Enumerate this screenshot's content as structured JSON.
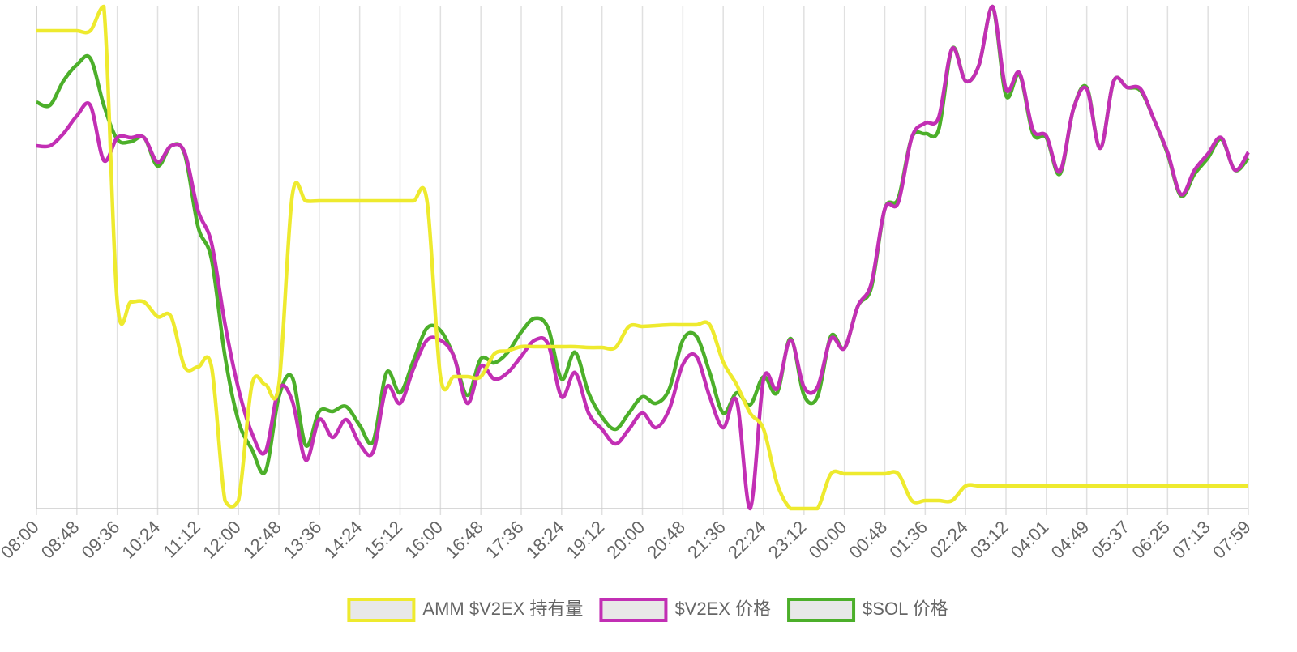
{
  "chart_data": {
    "type": "line",
    "categories": [
      "08:00",
      null,
      null,
      "08:48",
      null,
      null,
      "09:36",
      null,
      null,
      "10:24",
      null,
      null,
      "11:12",
      null,
      null,
      "12:00",
      null,
      null,
      "12:48",
      null,
      null,
      "13:36",
      null,
      null,
      "14:24",
      null,
      null,
      "15:12",
      null,
      null,
      "16:00",
      null,
      null,
      "16:48",
      null,
      null,
      "17:36",
      null,
      null,
      "18:24",
      null,
      null,
      "19:12",
      null,
      null,
      "20:00",
      null,
      null,
      "20:48",
      null,
      null,
      "21:36",
      null,
      null,
      "22:24",
      null,
      null,
      "23:12",
      null,
      null,
      "00:00",
      null,
      null,
      "00:48",
      null,
      null,
      "01:36",
      null,
      null,
      "02:24",
      null,
      null,
      "03:12",
      null,
      null,
      "04:01",
      null,
      null,
      "04:49",
      null,
      null,
      "05:37",
      null,
      null,
      "06:25",
      null,
      null,
      "07:13",
      null,
      null,
      "07:59"
    ],
    "series": [
      {
        "name": "AMM $V2EX 持有量",
        "color": "#eeea2e",
        "values": [
          590,
          590,
          590,
          590,
          590,
          620,
          255,
          255,
          255,
          237,
          237,
          175,
          175,
          175,
          10,
          10,
          153,
          153,
          153,
          387,
          380,
          380,
          380,
          380,
          380,
          380,
          380,
          380,
          380,
          380,
          163,
          163,
          163,
          163,
          191,
          195,
          200,
          200,
          200,
          200,
          200,
          199,
          199,
          199,
          225,
          225,
          226,
          227,
          227,
          227,
          227,
          181,
          153,
          118,
          98,
          31,
          0,
          0,
          0,
          43,
          43,
          43,
          43,
          43,
          43,
          10,
          10,
          10,
          10,
          28,
          28,
          28,
          28,
          28,
          28,
          28,
          28,
          28,
          28,
          28,
          28,
          28,
          28,
          28,
          28,
          28,
          28,
          28,
          28,
          28,
          28
        ]
      },
      {
        "name": "$V2EX 价格",
        "color": "#c22fb4",
        "values": [
          448,
          448,
          463,
          485,
          498,
          430,
          458,
          458,
          458,
          428,
          448,
          440,
          368,
          328,
          228,
          148,
          93,
          70,
          148,
          133,
          60,
          110,
          88,
          110,
          80,
          70,
          150,
          130,
          173,
          208,
          208,
          188,
          130,
          176,
          160,
          168,
          188,
          208,
          203,
          138,
          168,
          118,
          98,
          80,
          98,
          118,
          100,
          123,
          178,
          188,
          138,
          100,
          133,
          0,
          160,
          148,
          208,
          150,
          150,
          210,
          198,
          250,
          278,
          370,
          378,
          458,
          476,
          483,
          568,
          528,
          548,
          620,
          518,
          538,
          468,
          460,
          416,
          493,
          518,
          445,
          528,
          520,
          518,
          480,
          440,
          388,
          418,
          438,
          458,
          418,
          440
        ]
      },
      {
        "name": "$SOL 价格",
        "color": "#4caf2a",
        "values": [
          502,
          498,
          528,
          548,
          556,
          498,
          456,
          453,
          458,
          423,
          448,
          438,
          348,
          308,
          188,
          108,
          73,
          46,
          138,
          162,
          78,
          120,
          120,
          126,
          103,
          83,
          168,
          143,
          183,
          223,
          220,
          188,
          140,
          185,
          180,
          193,
          218,
          235,
          223,
          160,
          193,
          143,
          113,
          98,
          118,
          138,
          130,
          148,
          208,
          213,
          168,
          118,
          143,
          128,
          163,
          143,
          210,
          140,
          138,
          213,
          198,
          250,
          273,
          370,
          383,
          458,
          463,
          468,
          568,
          528,
          548,
          620,
          510,
          536,
          463,
          458,
          413,
          493,
          520,
          445,
          528,
          520,
          516,
          480,
          438,
          386,
          413,
          433,
          456,
          418,
          433
        ]
      }
    ],
    "ylim": [
      0,
      620
    ],
    "grid": true,
    "legend": "bottom"
  }
}
